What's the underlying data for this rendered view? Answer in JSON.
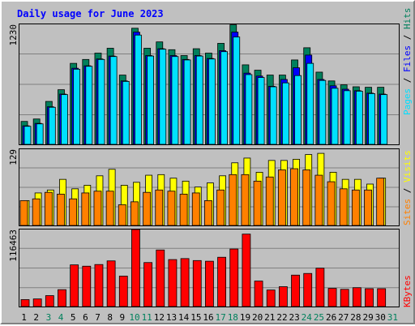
{
  "chart_data": [
    {
      "type": "bar",
      "title": "Daily usage for June 2023",
      "x_labels": [
        "1",
        "2",
        "3",
        "4",
        "5",
        "6",
        "7",
        "8",
        "9",
        "10",
        "11",
        "12",
        "13",
        "14",
        "15",
        "16",
        "17",
        "18",
        "19",
        "20",
        "21",
        "22",
        "23",
        "24",
        "25",
        "26",
        "27",
        "28",
        "29",
        "30",
        "31"
      ],
      "weekend_days": [
        3,
        4,
        10,
        11,
        17,
        18,
        24,
        25,
        31
      ],
      "ymax_label": "1230",
      "ylim": [
        0,
        1230
      ],
      "series": [
        {
          "name": "Hits",
          "color": "#00805c",
          "values": [
            235,
            260,
            440,
            560,
            830,
            870,
            935,
            985,
            710,
            1190,
            985,
            1050,
            970,
            910,
            980,
            935,
            1035,
            1225,
            815,
            760,
            710,
            710,
            865,
            990,
            740,
            650,
            610,
            590,
            585,
            585
          ]
        },
        {
          "name": "Files",
          "color": "#0000ff",
          "values": [
            190,
            215,
            385,
            515,
            780,
            805,
            875,
            905,
            650,
            1150,
            910,
            980,
            910,
            870,
            910,
            880,
            960,
            1150,
            730,
            700,
            595,
            665,
            785,
            915,
            665,
            600,
            565,
            550,
            525,
            515
          ]
        },
        {
          "name": "Pages",
          "color": "#00e0ff",
          "values": [
            185,
            210,
            380,
            510,
            770,
            800,
            870,
            900,
            645,
            1120,
            905,
            975,
            900,
            865,
            905,
            875,
            950,
            1100,
            715,
            685,
            590,
            630,
            705,
            830,
            655,
            575,
            550,
            545,
            520,
            510
          ]
        }
      ]
    },
    {
      "type": "bar",
      "ymax_label": "129",
      "ylim": [
        0,
        129
      ],
      "series": [
        {
          "name": "Visits",
          "color": "#ffff00",
          "values": [
            42,
            55,
            60,
            78,
            62,
            68,
            84,
            95,
            68,
            73,
            85,
            86,
            80,
            75,
            65,
            72,
            84,
            106,
            114,
            90,
            110,
            110,
            112,
            120,
            122,
            90,
            78,
            78,
            70,
            80
          ]
        },
        {
          "name": "Sites",
          "color": "#ff8000",
          "values": [
            42,
            45,
            56,
            53,
            45,
            55,
            58,
            58,
            35,
            40,
            56,
            60,
            58,
            53,
            55,
            42,
            60,
            86,
            86,
            75,
            82,
            94,
            96,
            94,
            85,
            74,
            62,
            60,
            60,
            80
          ]
        }
      ]
    },
    {
      "type": "bar",
      "ymax_label": "116463",
      "ylim": [
        0,
        116463
      ],
      "series": [
        {
          "name": "KBytes",
          "color": "#ff0000",
          "values": [
            10500,
            11500,
            16500,
            25500,
            63000,
            61000,
            63500,
            69000,
            46000,
            122000,
            66500,
            85500,
            71000,
            72500,
            69500,
            68500,
            74500,
            87000,
            109500,
            38500,
            25000,
            30000,
            47500,
            50000,
            58000,
            27500,
            26000,
            28500,
            27000,
            27000
          ]
        }
      ]
    }
  ]
}
